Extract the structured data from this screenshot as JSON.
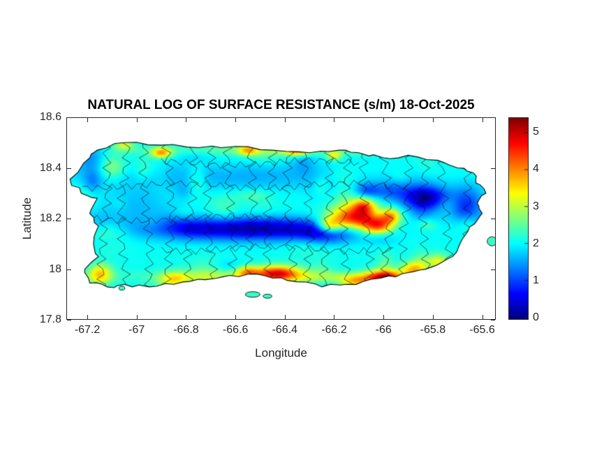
{
  "figure": {
    "title": "NATURAL LOG OF SURFACE RESISTANCE (s/m) 18-Oct-2025"
  },
  "axes": {
    "xlabel": "Longitude",
    "ylabel": "Latitude",
    "x_tick_labels": [
      "-67.2",
      "-67",
      "-66.8",
      "-66.6",
      "-66.4",
      "-66.2",
      "-66",
      "-65.8",
      "-65.6"
    ],
    "y_tick_labels": [
      "18.6",
      "18.4",
      "18.2",
      "18",
      "17.8"
    ],
    "text_color": "#262626"
  },
  "colorbar": {
    "tick_labels": [
      "0",
      "1",
      "2",
      "3",
      "4",
      "5"
    ],
    "colormap": "jet"
  },
  "chart_data": {
    "type": "heatmap",
    "title": "NATURAL LOG OF SURFACE RESISTANCE (s/m) 18-Oct-2025",
    "xlabel": "Longitude",
    "ylabel": "Latitude",
    "region": "Puerto Rico with municipal boundaries",
    "units": "s/m",
    "xlim": [
      -67.285,
      -65.545
    ],
    "ylim": [
      17.8,
      18.6
    ],
    "x_ticks": [
      -67.2,
      -67,
      -66.8,
      -66.6,
      -66.4,
      -66.2,
      -66,
      -65.8,
      -65.6
    ],
    "y_ticks": [
      18.6,
      18.4,
      18.2,
      18,
      17.8
    ],
    "colormap": "jet",
    "clim": [
      -0.05,
      5.4
    ],
    "value_clamp": [
      0,
      5.35
    ],
    "colorbar_ticks": [
      0,
      1,
      2,
      3,
      4,
      5
    ],
    "base_value": 2.05,
    "island_outline": [
      [
        -67.27,
        18.355
      ],
      [
        -67.225,
        18.3
      ],
      [
        -67.16,
        18.28
      ],
      [
        -67.19,
        18.22
      ],
      [
        -67.155,
        18.17
      ],
      [
        -67.175,
        18.1
      ],
      [
        -67.155,
        18.05
      ],
      [
        -67.21,
        18.0
      ],
      [
        -67.19,
        17.945
      ],
      [
        -67.12,
        17.93
      ],
      [
        -67.05,
        17.94
      ],
      [
        -66.95,
        17.93
      ],
      [
        -66.85,
        17.94
      ],
      [
        -66.75,
        17.96
      ],
      [
        -66.65,
        17.97
      ],
      [
        -66.55,
        17.98
      ],
      [
        -66.45,
        17.965
      ],
      [
        -66.35,
        17.95
      ],
      [
        -66.25,
        17.93
      ],
      [
        -66.15,
        17.94
      ],
      [
        -66.05,
        17.96
      ],
      [
        -65.95,
        17.97
      ],
      [
        -65.88,
        17.99
      ],
      [
        -65.8,
        18.01
      ],
      [
        -65.72,
        18.05
      ],
      [
        -65.68,
        18.12
      ],
      [
        -65.63,
        18.18
      ],
      [
        -65.6,
        18.22
      ],
      [
        -65.62,
        18.26
      ],
      [
        -65.585,
        18.3
      ],
      [
        -65.625,
        18.34
      ],
      [
        -65.635,
        18.38
      ],
      [
        -65.7,
        18.4
      ],
      [
        -65.78,
        18.43
      ],
      [
        -65.9,
        18.45
      ],
      [
        -66.0,
        18.44
      ],
      [
        -66.1,
        18.46
      ],
      [
        -66.18,
        18.47
      ],
      [
        -66.3,
        18.46
      ],
      [
        -66.45,
        18.47
      ],
      [
        -66.6,
        18.485
      ],
      [
        -66.75,
        18.48
      ],
      [
        -66.9,
        18.49
      ],
      [
        -67.05,
        18.5
      ],
      [
        -67.16,
        18.47
      ],
      [
        -67.19,
        18.44
      ]
    ],
    "field_features": [
      [
        -66.55,
        18.16,
        -1.9,
        0.38,
        0.045
      ],
      [
        -66.25,
        18.14,
        -1.1,
        0.12,
        0.04
      ],
      [
        -65.83,
        18.28,
        -2.0,
        0.09,
        0.05
      ],
      [
        -65.97,
        18.31,
        -0.8,
        0.08,
        0.04
      ],
      [
        -66.6,
        18.37,
        -0.5,
        0.5,
        0.06
      ],
      [
        -67.0,
        18.25,
        -0.4,
        0.15,
        0.08
      ],
      [
        -65.66,
        18.27,
        -0.8,
        0.07,
        0.07
      ],
      [
        -66.07,
        18.31,
        -0.9,
        0.05,
        0.03
      ],
      [
        -66.12,
        18.2,
        2.6,
        0.1,
        0.045
      ],
      [
        -66.02,
        18.17,
        2.2,
        0.06,
        0.035
      ],
      [
        -66.22,
        18.17,
        1.8,
        0.05,
        0.03
      ],
      [
        -65.97,
        18.21,
        1.6,
        0.04,
        0.03
      ],
      [
        -66.08,
        18.25,
        1.4,
        0.05,
        0.03
      ],
      [
        -66.43,
        17.985,
        2.4,
        0.09,
        0.03
      ],
      [
        -66.55,
        17.99,
        1.5,
        0.05,
        0.025
      ],
      [
        -66.0,
        17.965,
        2.3,
        0.08,
        0.03
      ],
      [
        -66.12,
        17.95,
        1.6,
        0.06,
        0.025
      ],
      [
        -65.88,
        18.0,
        1.5,
        0.05,
        0.03
      ],
      [
        -66.85,
        17.96,
        1.2,
        0.06,
        0.03
      ],
      [
        -67.15,
        17.98,
        1.6,
        0.05,
        0.04
      ],
      [
        -66.9,
        18.46,
        1.8,
        0.04,
        0.02
      ],
      [
        -66.55,
        18.47,
        1.3,
        0.04,
        0.02
      ],
      [
        -66.35,
        18.47,
        2.0,
        0.05,
        0.02
      ],
      [
        -66.2,
        18.45,
        1.2,
        0.03,
        0.02
      ],
      [
        -67.05,
        18.49,
        1.0,
        0.04,
        0.02
      ],
      [
        -67.1,
        18.4,
        0.8,
        0.05,
        0.04
      ],
      [
        -65.78,
        18.03,
        1.2,
        0.05,
        0.03
      ],
      [
        -66.4,
        17.97,
        0.7,
        0.55,
        0.025
      ],
      [
        -66.5,
        18.47,
        0.5,
        0.5,
        0.02
      ]
    ],
    "noise": {
      "count": 75,
      "amplitude": 0.5,
      "seed": 12345
    },
    "boundary_lons": [
      -67.13,
      -67.05,
      -66.96,
      -66.87,
      -66.78,
      -66.7,
      -66.62,
      -66.54,
      -66.46,
      -66.38,
      -66.31,
      -66.23,
      -66.15,
      -66.07,
      -65.99,
      -65.91,
      -65.83,
      -65.75,
      -65.67
    ],
    "boundary_lats": [
      {
        "lat": 18.33,
        "from": -67.22,
        "to": -65.9
      },
      {
        "lat": 18.2,
        "from": -67.2,
        "to": -66.3
      },
      {
        "lat": 18.08,
        "from": -66.9,
        "to": -65.95
      },
      {
        "lat": 18.42,
        "from": -66.9,
        "to": -66.1
      }
    ],
    "islets": [
      [
        -66.53,
        17.9,
        0.03,
        0.011
      ],
      [
        -66.47,
        17.893,
        0.018,
        0.008
      ],
      [
        -67.06,
        17.925,
        0.012,
        0.008
      ],
      [
        -65.56,
        18.11,
        0.02,
        0.018
      ]
    ]
  }
}
